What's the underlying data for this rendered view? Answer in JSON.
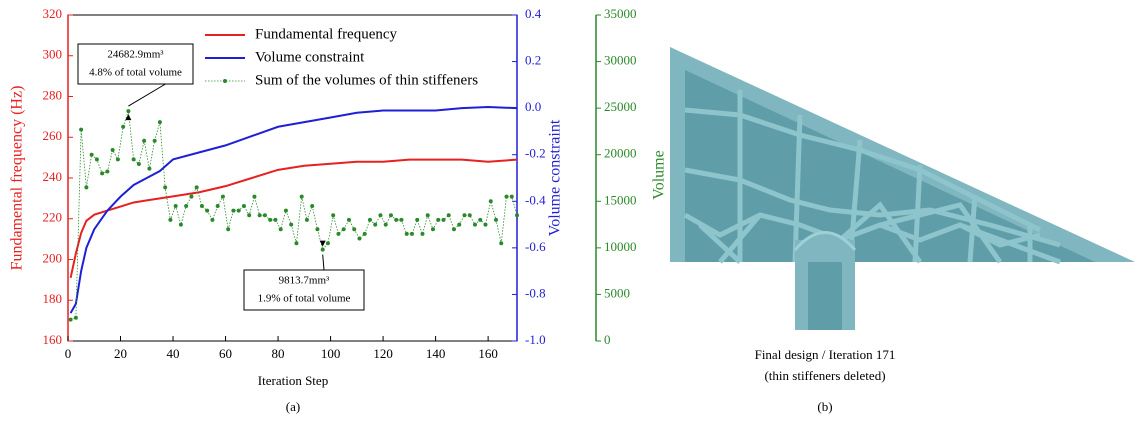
{
  "chart_data": {
    "type": "line",
    "x_label": "Iteration Step",
    "y_label": "Fundamental frequency (Hz)",
    "y2_label": "Volume constraint",
    "y3_label": "Volume",
    "xlim": [
      0,
      171
    ],
    "xticks": [
      0,
      20,
      40,
      60,
      80,
      100,
      120,
      140,
      160
    ],
    "ylim": [
      160,
      320
    ],
    "yticks": [
      160,
      180,
      200,
      220,
      240,
      260,
      280,
      300,
      320
    ],
    "y_color": "#e8201f",
    "y2lim": [
      -1,
      0.4
    ],
    "y2ticks": [
      {
        "value": -1,
        "label": "-1.0"
      },
      -0.8,
      -0.6,
      -0.4,
      -0.2,
      {
        "value": 0,
        "label": "0.0"
      },
      0.2,
      0.4
    ],
    "y2_color": "#1f1fd6",
    "y3lim": [
      0,
      35000
    ],
    "y3ticks": [
      0,
      5000,
      10000,
      15000,
      20000,
      25000,
      30000,
      35000
    ],
    "y3_color": "#2a8a2a",
    "series": [
      {
        "name": "Fundamental frequency",
        "color": "#e8201f",
        "axis": "y",
        "style": "solid",
        "x": [
          1,
          3,
          5,
          7,
          10,
          15,
          20,
          25,
          30,
          35,
          40,
          50,
          60,
          70,
          80,
          90,
          100,
          110,
          120,
          130,
          140,
          150,
          160,
          171
        ],
        "values": [
          191,
          203,
          213,
          219,
          222,
          224,
          226,
          228,
          229,
          230,
          231,
          233,
          236,
          240,
          244,
          246,
          247,
          248,
          248,
          249,
          249,
          249,
          248,
          249
        ]
      },
      {
        "name": "Volume constraint",
        "color": "#1f1fd6",
        "axis": "y2",
        "style": "solid",
        "x": [
          1,
          3,
          5,
          7,
          10,
          15,
          20,
          25,
          30,
          35,
          40,
          50,
          60,
          70,
          80,
          90,
          100,
          110,
          120,
          130,
          140,
          150,
          160,
          171
        ],
        "values": [
          -0.88,
          -0.84,
          -0.7,
          -0.6,
          -0.52,
          -0.44,
          -0.38,
          -0.33,
          -0.3,
          -0.27,
          -0.22,
          -0.19,
          -0.16,
          -0.12,
          -0.08,
          -0.06,
          -0.04,
          -0.02,
          -0.01,
          -0.01,
          -0.01,
          0,
          0.005,
          0
        ]
      },
      {
        "name": "Sum of the volumes of thin stiffeners",
        "color": "#2a8a2a",
        "axis": "y3",
        "style": "dotted-markers",
        "x": [
          1,
          3,
          5,
          7,
          9,
          11,
          13,
          15,
          17,
          19,
          21,
          23,
          25,
          27,
          29,
          31,
          33,
          35,
          37,
          39,
          41,
          43,
          45,
          47,
          49,
          51,
          53,
          55,
          57,
          59,
          61,
          63,
          65,
          67,
          69,
          71,
          73,
          75,
          77,
          79,
          81,
          83,
          85,
          87,
          89,
          91,
          93,
          95,
          97,
          99,
          101,
          103,
          105,
          107,
          109,
          111,
          113,
          115,
          117,
          119,
          121,
          123,
          125,
          127,
          129,
          131,
          133,
          135,
          137,
          139,
          141,
          143,
          145,
          147,
          149,
          151,
          153,
          155,
          157,
          159,
          161,
          163,
          165,
          167,
          169,
          171
        ],
        "values": [
          2300,
          2500,
          22700,
          16500,
          20000,
          19500,
          18000,
          18200,
          20500,
          19500,
          23000,
          24682.9,
          19500,
          19000,
          21500,
          18500,
          21500,
          23500,
          16500,
          13000,
          14500,
          12500,
          14500,
          15500,
          16500,
          14500,
          14000,
          13000,
          14500,
          15500,
          12000,
          14000,
          14000,
          14500,
          13500,
          15500,
          13500,
          13500,
          13000,
          13000,
          12000,
          14000,
          12500,
          10500,
          15500,
          13000,
          14500,
          12000,
          9813.7,
          10500,
          13500,
          11500,
          12000,
          13000,
          12000,
          11000,
          11500,
          13000,
          12500,
          13500,
          12500,
          13500,
          13000,
          13000,
          11500,
          11500,
          13000,
          11500,
          13500,
          12000,
          13000,
          13000,
          13500,
          12000,
          12500,
          13500,
          13500,
          12500,
          13000,
          12500,
          15000,
          13000,
          10500,
          15500,
          15500,
          13500
        ]
      }
    ],
    "annotations": [
      {
        "series": 2,
        "point": 11,
        "lines": [
          "24682.9mm³",
          "4.8% of total volume"
        ]
      },
      {
        "series": 2,
        "point": 48,
        "lines": [
          "9813.7mm³",
          "1.9% of total volume"
        ]
      }
    ],
    "caption": "(a)"
  },
  "design_panel": {
    "lines": [
      "Final design / Iteration 171",
      "(thin stiffeners deleted)"
    ],
    "caption": "(b)"
  }
}
